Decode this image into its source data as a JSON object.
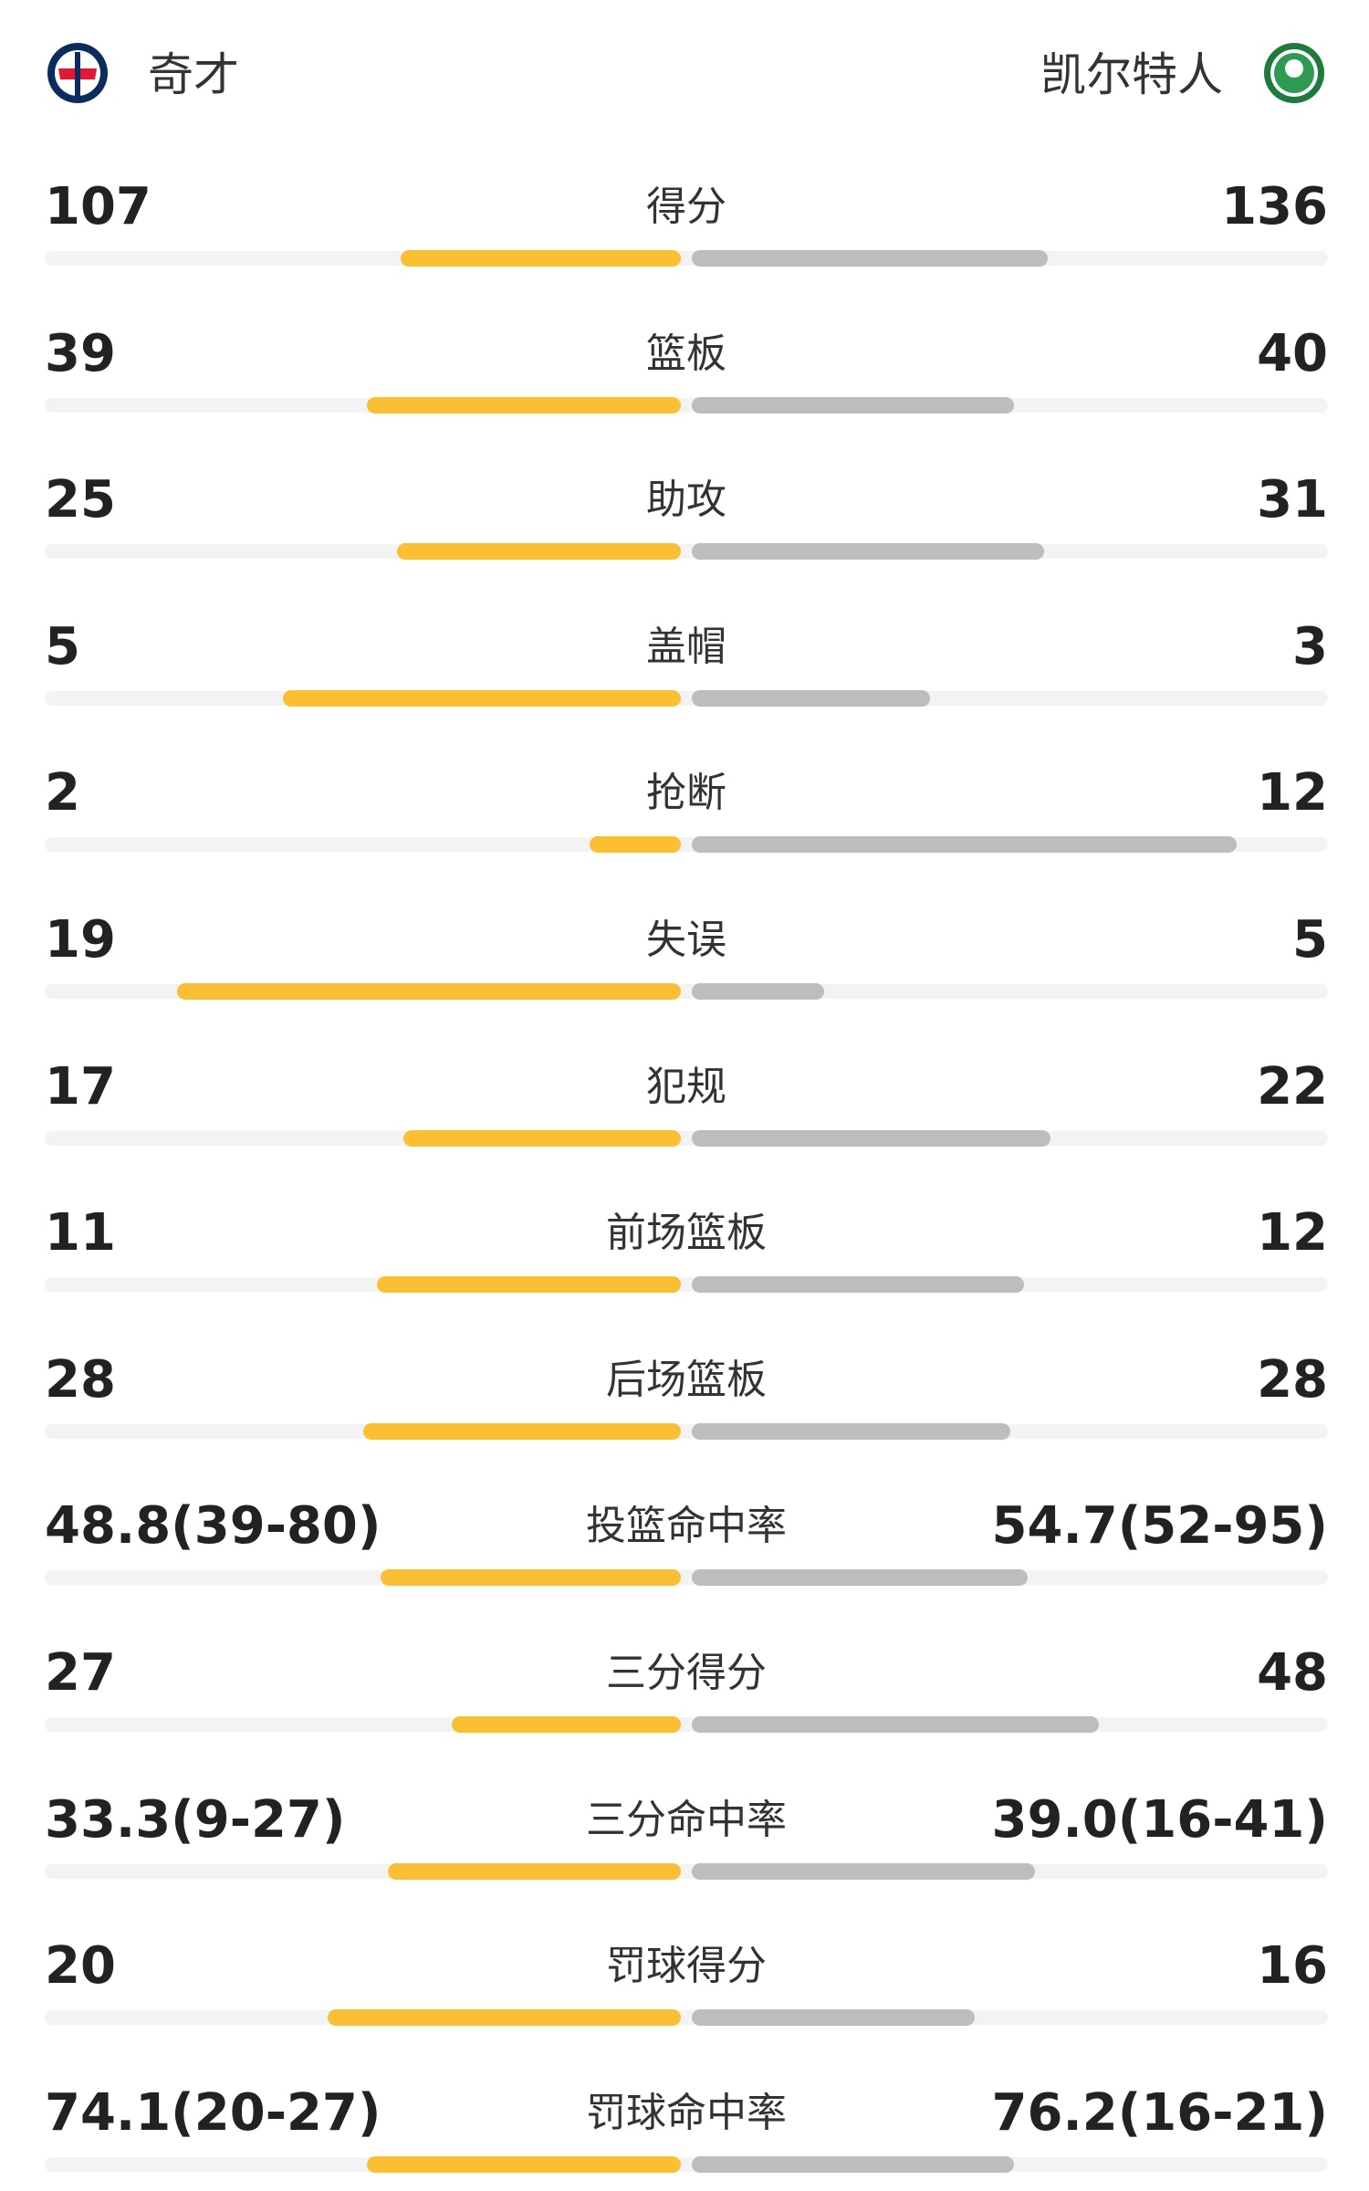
{
  "header": {
    "home": "奇才",
    "away": "凯尔特人"
  },
  "stats": [
    {
      "label": "得分",
      "home": 107,
      "away": 136
    },
    {
      "label": "篮板",
      "home": 39,
      "away": 40
    },
    {
      "label": "助攻",
      "home": 25,
      "away": 31
    },
    {
      "label": "盖帽",
      "home": 5,
      "away": 3
    },
    {
      "label": "抢断",
      "home": 2,
      "away": 12
    },
    {
      "label": "失误",
      "home": 19,
      "away": 5
    },
    {
      "label": "犯规",
      "home": 17,
      "away": 22
    },
    {
      "label": "前场篮板",
      "home": 11,
      "away": 12
    },
    {
      "label": "后场篮板",
      "home": 28,
      "away": 28
    },
    {
      "label": "投篮命中率",
      "home": 48.8,
      "home_label": "48.8(39-80)",
      "away": 54.7,
      "away_label": "54.7(52-95)"
    },
    {
      "label": "三分得分",
      "home": 27,
      "away": 48
    },
    {
      "label": "三分命中率",
      "home": 33.3,
      "home_label": "33.3(9-27)",
      "away": 39.0,
      "away_label": "39.0(16-41)"
    },
    {
      "label": "罚球得分",
      "home": 20,
      "away": 16
    },
    {
      "label": "罚球命中率",
      "home": 74.1,
      "home_label": "74.1(20-27)",
      "away": 76.2,
      "away_label": "76.2(16-21)"
    }
  ]
}
